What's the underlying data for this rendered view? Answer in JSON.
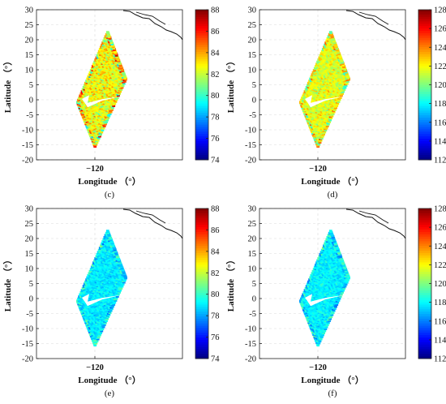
{
  "chart_data": [
    {
      "type": "heatmap",
      "panel_label": "(c)",
      "xlabel": "Longitude （°）",
      "ylabel": "Latitude （°）",
      "x_ticks": [
        "-120"
      ],
      "y_ticks": [
        30,
        25,
        20,
        15,
        10,
        5,
        0,
        -5,
        -10,
        -15,
        -20
      ],
      "ylim": [
        -20,
        30
      ],
      "colorbar": {
        "min": 74,
        "max": 88,
        "ticks": [
          88,
          86,
          84,
          82,
          80,
          78,
          76,
          74
        ],
        "colormap": "jet"
      },
      "field": {
        "mean": 82.6,
        "spread": 2.2
      }
    },
    {
      "type": "heatmap",
      "panel_label": "(d)",
      "xlabel": "Longitude （°）",
      "ylabel": "Latitude （°）",
      "x_ticks": [
        "-120"
      ],
      "y_ticks": [
        30,
        25,
        20,
        15,
        10,
        5,
        0,
        -5,
        -10,
        -15,
        -20
      ],
      "ylim": [
        -20,
        30
      ],
      "colorbar": {
        "min": 112,
        "max": 128,
        "ticks": [
          128,
          126,
          124,
          122,
          120,
          118,
          116,
          114,
          112
        ],
        "colormap": "jet"
      },
      "field": {
        "mean": 121.6,
        "spread": 1.8
      }
    },
    {
      "type": "heatmap",
      "panel_label": "(e)",
      "xlabel": "Longitude （°）",
      "ylabel": "Latitude （°）",
      "x_ticks": [
        "-120"
      ],
      "y_ticks": [
        30,
        25,
        20,
        15,
        10,
        5,
        0,
        -5,
        -10,
        -15,
        -20
      ],
      "ylim": [
        -20,
        30
      ],
      "colorbar": {
        "min": 74,
        "max": 88,
        "ticks": [
          88,
          86,
          84,
          82,
          80,
          78,
          76,
          74
        ],
        "colormap": "jet"
      },
      "field": {
        "mean": 79.0,
        "spread": 1.0
      }
    },
    {
      "type": "heatmap",
      "panel_label": "(f)",
      "xlabel": "Longitude （°）",
      "ylabel": "Latitude （°）",
      "x_ticks": [
        "-120"
      ],
      "y_ticks": [
        30,
        25,
        20,
        15,
        10,
        5,
        0,
        -5,
        -10,
        -15,
        -20
      ],
      "ylim": [
        -20,
        30
      ],
      "colorbar": {
        "min": 112,
        "max": 128,
        "ticks": [
          128,
          126,
          124,
          122,
          120,
          118,
          116,
          114,
          112
        ],
        "colormap": "jet"
      },
      "field": {
        "mean": 117.8,
        "spread": 1.1
      }
    }
  ]
}
